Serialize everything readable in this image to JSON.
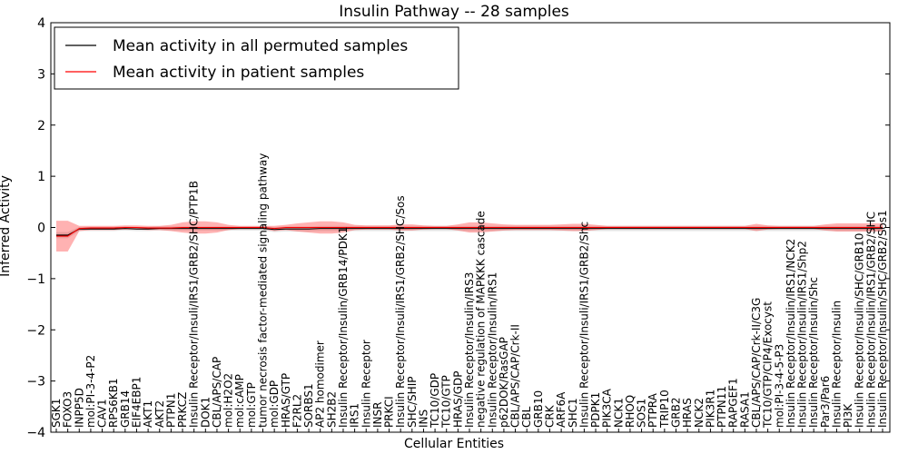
{
  "chart_data": {
    "type": "line",
    "title": "Insulin Pathway -- 28 samples",
    "xlabel": "Cellular Entities",
    "ylabel": "Inferred Activity",
    "ylim": [
      -4,
      4
    ],
    "yticks": [
      -4,
      -3,
      -2,
      -1,
      0,
      1,
      2,
      3,
      4
    ],
    "ytick_labels": [
      "−4",
      "−3",
      "−2",
      "−1",
      "0",
      "1",
      "2",
      "3",
      "4"
    ],
    "grid": false,
    "legend_position": "top-left",
    "categories": [
      "SGK1",
      "FOXO3",
      "INPP5D",
      "mol:PI-3-4-P2",
      "CAV1",
      "RPS6KB1",
      "GRB14",
      "EIF4EBP1",
      "AKT1",
      "AKT2",
      "PTPN1",
      "PRKCZ",
      "Insulin Receptor/Insuli/IRS1/GRB2/SHC/PTP1B",
      "DOK1",
      "CBL/APS/CAP",
      "mol:H2O2",
      "mol:cAMP",
      "mol:GTP",
      "tumor necrosis factor-mediated signaling pathway",
      "mol:GDP",
      "HRAS/GTP",
      "F2RL2",
      "SORBS1",
      "AP2 homodimer",
      "SH2B2",
      "Insulin Receptor/Insulin/GRB14/PDK1",
      "IRS1",
      "Insulin Receptor",
      "INSR",
      "PRKCI",
      "Insulin Receptor/Insuli/IRS1/GRB2/SHC/Sos",
      "SHC/SHIP",
      "INS",
      "TC10/GDP",
      "TC10/GTP",
      "HRAS/GDP",
      "Insulin Receptor/Insulin/IRS3",
      "negative regulation of MAPKKK cascade",
      "Insulin Receptor/Insulin/IRS1",
      "p62DOK/RasGAP",
      "CBL/APS/CAP/Crk-II",
      "CBL",
      "GRB10",
      "CRK",
      "ARF6A",
      "SHC1",
      "Insulin Receptor/Insuli/IRS1/GRB2/Shc",
      "PDPK1",
      "PIK3CA",
      "NCK1",
      "RHOQ",
      "SOS1",
      "PTPRA",
      "TRIP10",
      "GRB2",
      "HRAS",
      "NCK2",
      "PIK3R1",
      "PTPN11",
      "RAPGEF1",
      "RASA1",
      "CBL/APS/CAP/Crk-II/C3G",
      "TC10/GTP/CIP4/Exocyst",
      "mol:PI-3-4-5-P3",
      "Insulin Receptor/Insulin/IRS1/NCK2",
      "Insulin Receptor/Insulin/IRS1/Shp2",
      "Insulin Receptor/Insulin/Shc",
      "Par3/Par6",
      "Insulin Receptor/Insulin",
      "PI3K",
      "Insulin Receptor/Insulin/SHC/GRB10",
      "Insulin Receptor/Insulin/IRS1/GRB2/SHC",
      "Insulin Receptor/Insulin/SHC/GRB2/Sos1"
    ],
    "series": [
      {
        "name": "Mean activity in all permuted samples",
        "color": "#000000",
        "values": [
          -0.15,
          -0.15,
          -0.03,
          -0.03,
          -0.03,
          -0.03,
          -0.02,
          -0.03,
          -0.03,
          -0.02,
          -0.02,
          -0.02,
          -0.02,
          -0.02,
          -0.02,
          -0.02,
          -0.02,
          -0.02,
          -0.02,
          -0.04,
          -0.03,
          -0.03,
          -0.03,
          -0.02,
          -0.02,
          -0.02,
          -0.02,
          -0.02,
          -0.02,
          -0.02,
          -0.02,
          -0.02,
          -0.02,
          -0.02,
          -0.02,
          -0.02,
          -0.02,
          -0.02,
          -0.02,
          -0.02,
          -0.02,
          -0.02,
          -0.02,
          -0.02,
          -0.02,
          -0.02,
          -0.02,
          -0.02,
          -0.02,
          -0.02,
          -0.02,
          -0.02,
          -0.02,
          -0.02,
          -0.02,
          -0.02,
          -0.02,
          -0.02,
          -0.02,
          -0.02,
          -0.02,
          -0.02,
          -0.02,
          -0.02,
          -0.02,
          -0.02,
          -0.02,
          -0.02,
          -0.02,
          -0.02,
          -0.02,
          -0.02,
          -0.02
        ],
        "band": [
          0.06,
          0.06,
          0.04,
          0.04,
          0.04,
          0.04,
          0.04,
          0.04,
          0.04,
          0.04,
          0.04,
          0.04,
          0.04,
          0.04,
          0.04,
          0.04,
          0.04,
          0.04,
          0.04,
          0.05,
          0.05,
          0.05,
          0.05,
          0.05,
          0.05,
          0.05,
          0.05,
          0.05,
          0.05,
          0.05,
          0.05,
          0.05,
          0.05,
          0.05,
          0.05,
          0.05,
          0.05,
          0.05,
          0.05,
          0.05,
          0.05,
          0.05,
          0.05,
          0.05,
          0.05,
          0.05,
          0.05,
          0.05,
          0.05,
          0.05,
          0.05,
          0.05,
          0.05,
          0.05,
          0.05,
          0.05,
          0.05,
          0.05,
          0.05,
          0.05,
          0.05,
          0.05,
          0.05,
          0.05,
          0.05,
          0.05,
          0.05,
          0.05,
          0.05,
          0.05,
          0.05,
          0.05,
          0.05
        ]
      },
      {
        "name": "Mean activity in patient samples",
        "color": "#ff0000",
        "values": [
          -0.17,
          -0.17,
          -0.02,
          -0.01,
          -0.01,
          -0.01,
          0.0,
          0.0,
          -0.01,
          -0.01,
          -0.01,
          0.0,
          0.0,
          0.0,
          0.0,
          0.0,
          0.0,
          0.0,
          0.0,
          -0.02,
          0.0,
          0.0,
          0.0,
          0.0,
          0.0,
          0.0,
          0.0,
          0.0,
          0.0,
          0.0,
          0.0,
          0.0,
          0.0,
          0.0,
          0.0,
          0.0,
          0.0,
          0.0,
          0.0,
          0.0,
          0.0,
          0.0,
          0.0,
          0.0,
          0.0,
          0.0,
          0.0,
          0.0,
          0.0,
          0.0,
          0.0,
          0.0,
          0.0,
          0.0,
          0.0,
          0.0,
          0.0,
          0.0,
          0.0,
          0.0,
          0.0,
          0.0,
          0.0,
          0.0,
          0.0,
          0.0,
          0.0,
          0.0,
          0.0,
          0.0,
          0.0,
          0.0,
          0.0
        ],
        "band": [
          0.3,
          0.3,
          0.05,
          0.04,
          0.04,
          0.04,
          0.04,
          0.04,
          0.04,
          0.04,
          0.06,
          0.1,
          0.12,
          0.12,
          0.1,
          0.05,
          0.03,
          0.03,
          0.03,
          0.05,
          0.05,
          0.08,
          0.1,
          0.12,
          0.12,
          0.1,
          0.05,
          0.04,
          0.04,
          0.04,
          0.06,
          0.06,
          0.04,
          0.03,
          0.03,
          0.06,
          0.1,
          0.1,
          0.08,
          0.06,
          0.05,
          0.05,
          0.05,
          0.05,
          0.06,
          0.07,
          0.07,
          0.05,
          0.03,
          0.03,
          0.03,
          0.03,
          0.03,
          0.03,
          0.03,
          0.03,
          0.03,
          0.03,
          0.03,
          0.03,
          0.03,
          0.07,
          0.04,
          0.03,
          0.03,
          0.03,
          0.03,
          0.06,
          0.08,
          0.08,
          0.08,
          0.08,
          0.08
        ]
      }
    ]
  }
}
